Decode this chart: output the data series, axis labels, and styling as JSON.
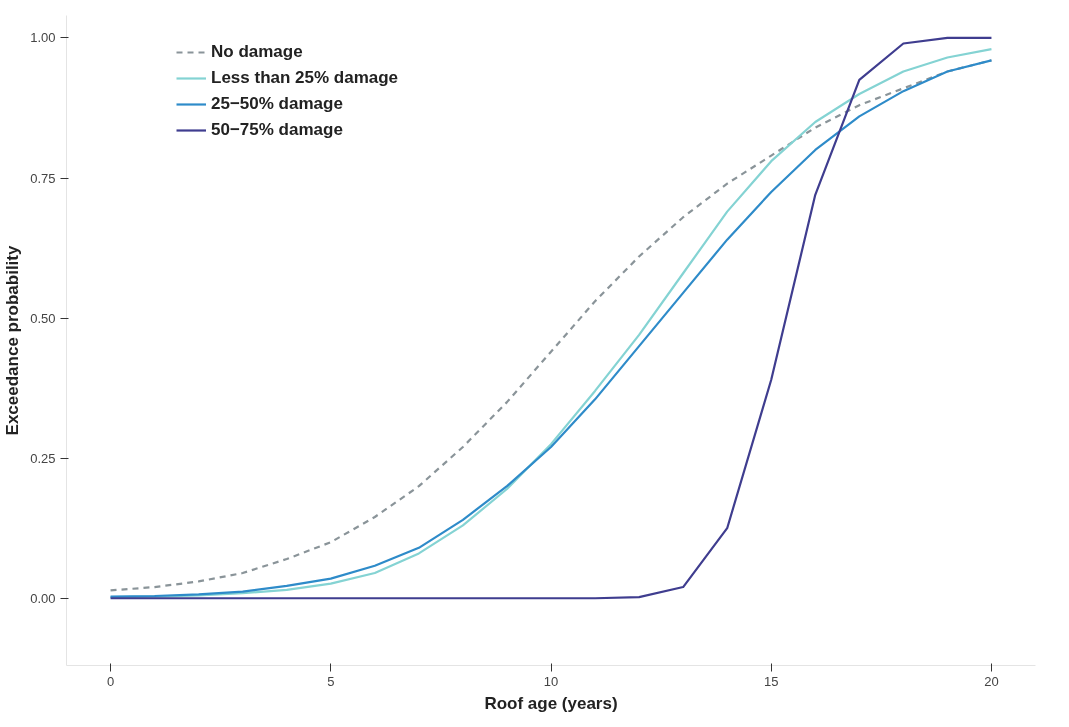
{
  "chart_data": {
    "type": "line",
    "xlabel": "Roof age (years)",
    "ylabel": "Exceedance probability",
    "x": [
      0,
      1,
      2,
      3,
      4,
      5,
      6,
      7,
      8,
      9,
      10,
      11,
      12,
      13,
      14,
      15,
      16,
      17,
      18,
      19,
      20
    ],
    "xlim": [
      -1,
      21
    ],
    "xticks": [
      0,
      5,
      10,
      15,
      20
    ],
    "ylim": [
      -0.12,
      1.04
    ],
    "yticks": [
      {
        "value": 0,
        "label": "0.00"
      },
      {
        "value": 0.25,
        "label": "0.25"
      },
      {
        "value": 0.5,
        "label": "0.50"
      },
      {
        "value": 0.75,
        "label": "0.75"
      },
      {
        "value": 1,
        "label": "1.00"
      }
    ],
    "grid": false,
    "legend": "top left",
    "marker": "none",
    "series": [
      {
        "name": "No damage",
        "color": "#8a9499",
        "line_style": "dashed",
        "values": [
          0.014,
          0.02,
          0.03,
          0.045,
          0.07,
          0.1,
          0.145,
          0.2,
          0.27,
          0.35,
          0.44,
          0.53,
          0.61,
          0.68,
          0.74,
          0.79,
          0.84,
          0.88,
          0.91,
          0.94,
          0.96
        ]
      },
      {
        "name": "Less than 25% damage",
        "color": "#84d3d3",
        "line_style": "solid",
        "values": [
          0.002,
          0.003,
          0.005,
          0.009,
          0.015,
          0.026,
          0.045,
          0.08,
          0.13,
          0.195,
          0.275,
          0.37,
          0.47,
          0.58,
          0.69,
          0.78,
          0.85,
          0.9,
          0.94,
          0.965,
          0.98
        ]
      },
      {
        "name": "25−50% damage",
        "color": "#2e8bc9",
        "line_style": "solid",
        "values": [
          0.003,
          0.004,
          0.007,
          0.012,
          0.022,
          0.035,
          0.058,
          0.09,
          0.14,
          0.2,
          0.27,
          0.355,
          0.45,
          0.545,
          0.64,
          0.725,
          0.8,
          0.86,
          0.905,
          0.94,
          0.96
        ]
      },
      {
        "name": "50−75% damage",
        "color": "#3f3d8f",
        "line_style": "solid",
        "values": [
          0,
          0,
          0,
          0,
          0,
          0,
          0,
          0,
          0,
          0,
          0,
          0,
          0.002,
          0.02,
          0.125,
          0.39,
          0.72,
          0.925,
          0.99,
          1,
          1
        ]
      }
    ]
  }
}
